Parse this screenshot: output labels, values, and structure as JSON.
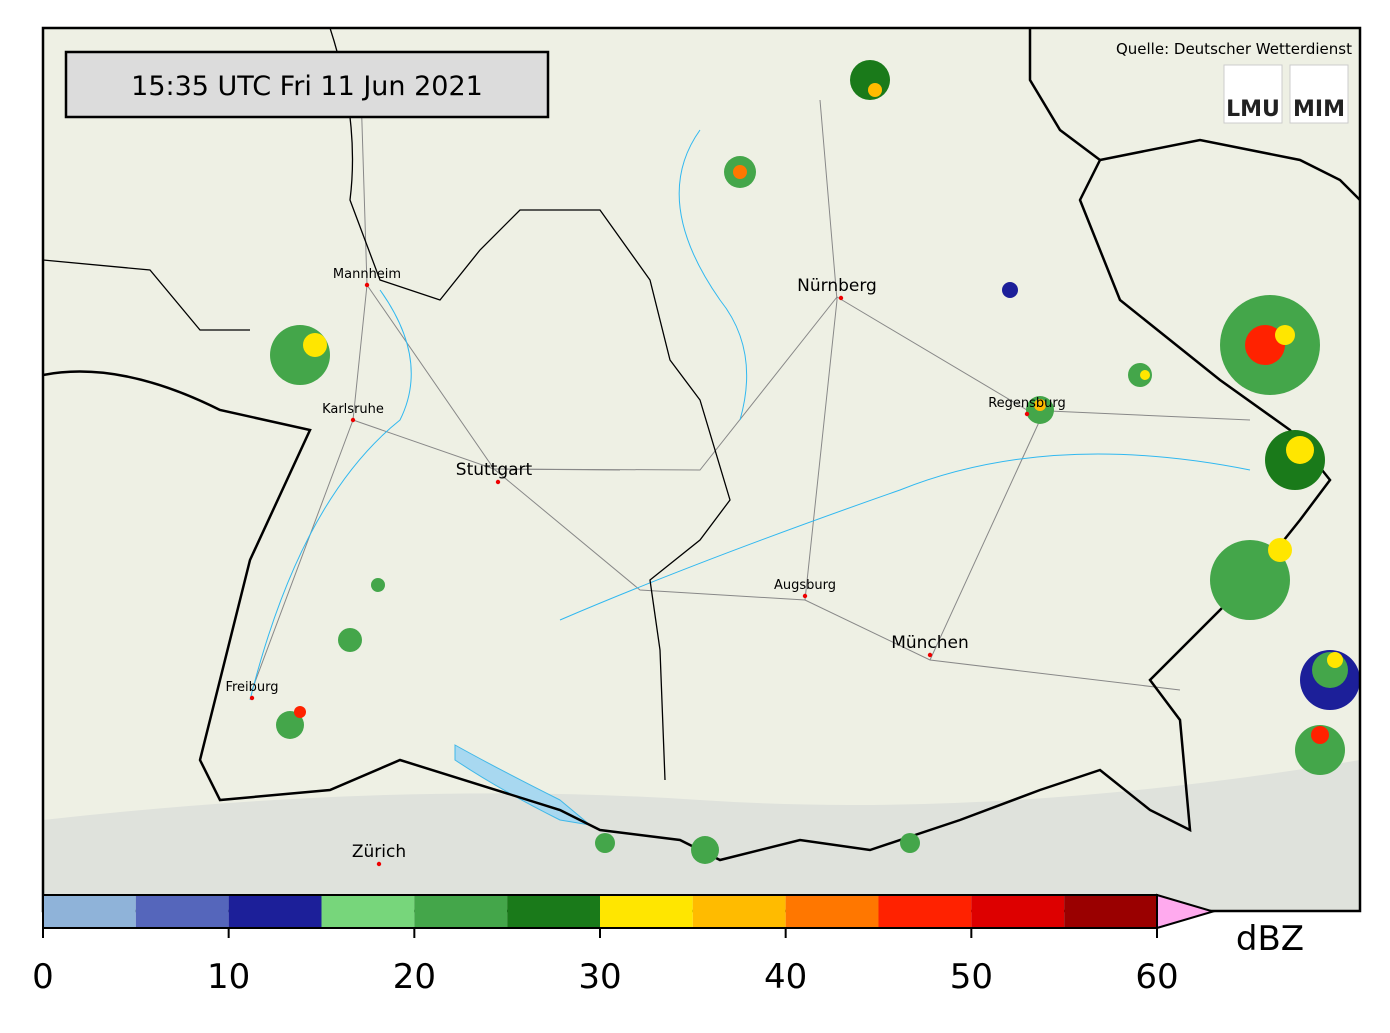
{
  "header": {
    "timestamp": "15:35 UTC  Fri 11 Jun 2021",
    "source": "Quelle: Deutscher Wetterdienst",
    "logos": [
      "LMU",
      "MIM"
    ]
  },
  "cities": [
    {
      "name": "Mannheim"
    },
    {
      "name": "Nürnberg"
    },
    {
      "name": "Karlsruhe"
    },
    {
      "name": "Stuttgart"
    },
    {
      "name": "Regensburg"
    },
    {
      "name": "Augsburg"
    },
    {
      "name": "München"
    },
    {
      "name": "Freiburg"
    },
    {
      "name": "Zürich"
    }
  ],
  "colorbar": {
    "unit": "dBZ",
    "bins": [
      0,
      5,
      10,
      15,
      20,
      25,
      30,
      35,
      40,
      45,
      50,
      55,
      60
    ],
    "colors": [
      "#8fb3d9",
      "#5566bb",
      "#1c1f99",
      "#77d67b",
      "#44a64a",
      "#1a7a1a",
      "#ffe600",
      "#ffbb00",
      "#ff7700",
      "#ff2200",
      "#dd0000",
      "#9a0000"
    ],
    "extend_color": "#ffaaee",
    "ticks": [
      0,
      10,
      20,
      30,
      40,
      50,
      60
    ]
  }
}
